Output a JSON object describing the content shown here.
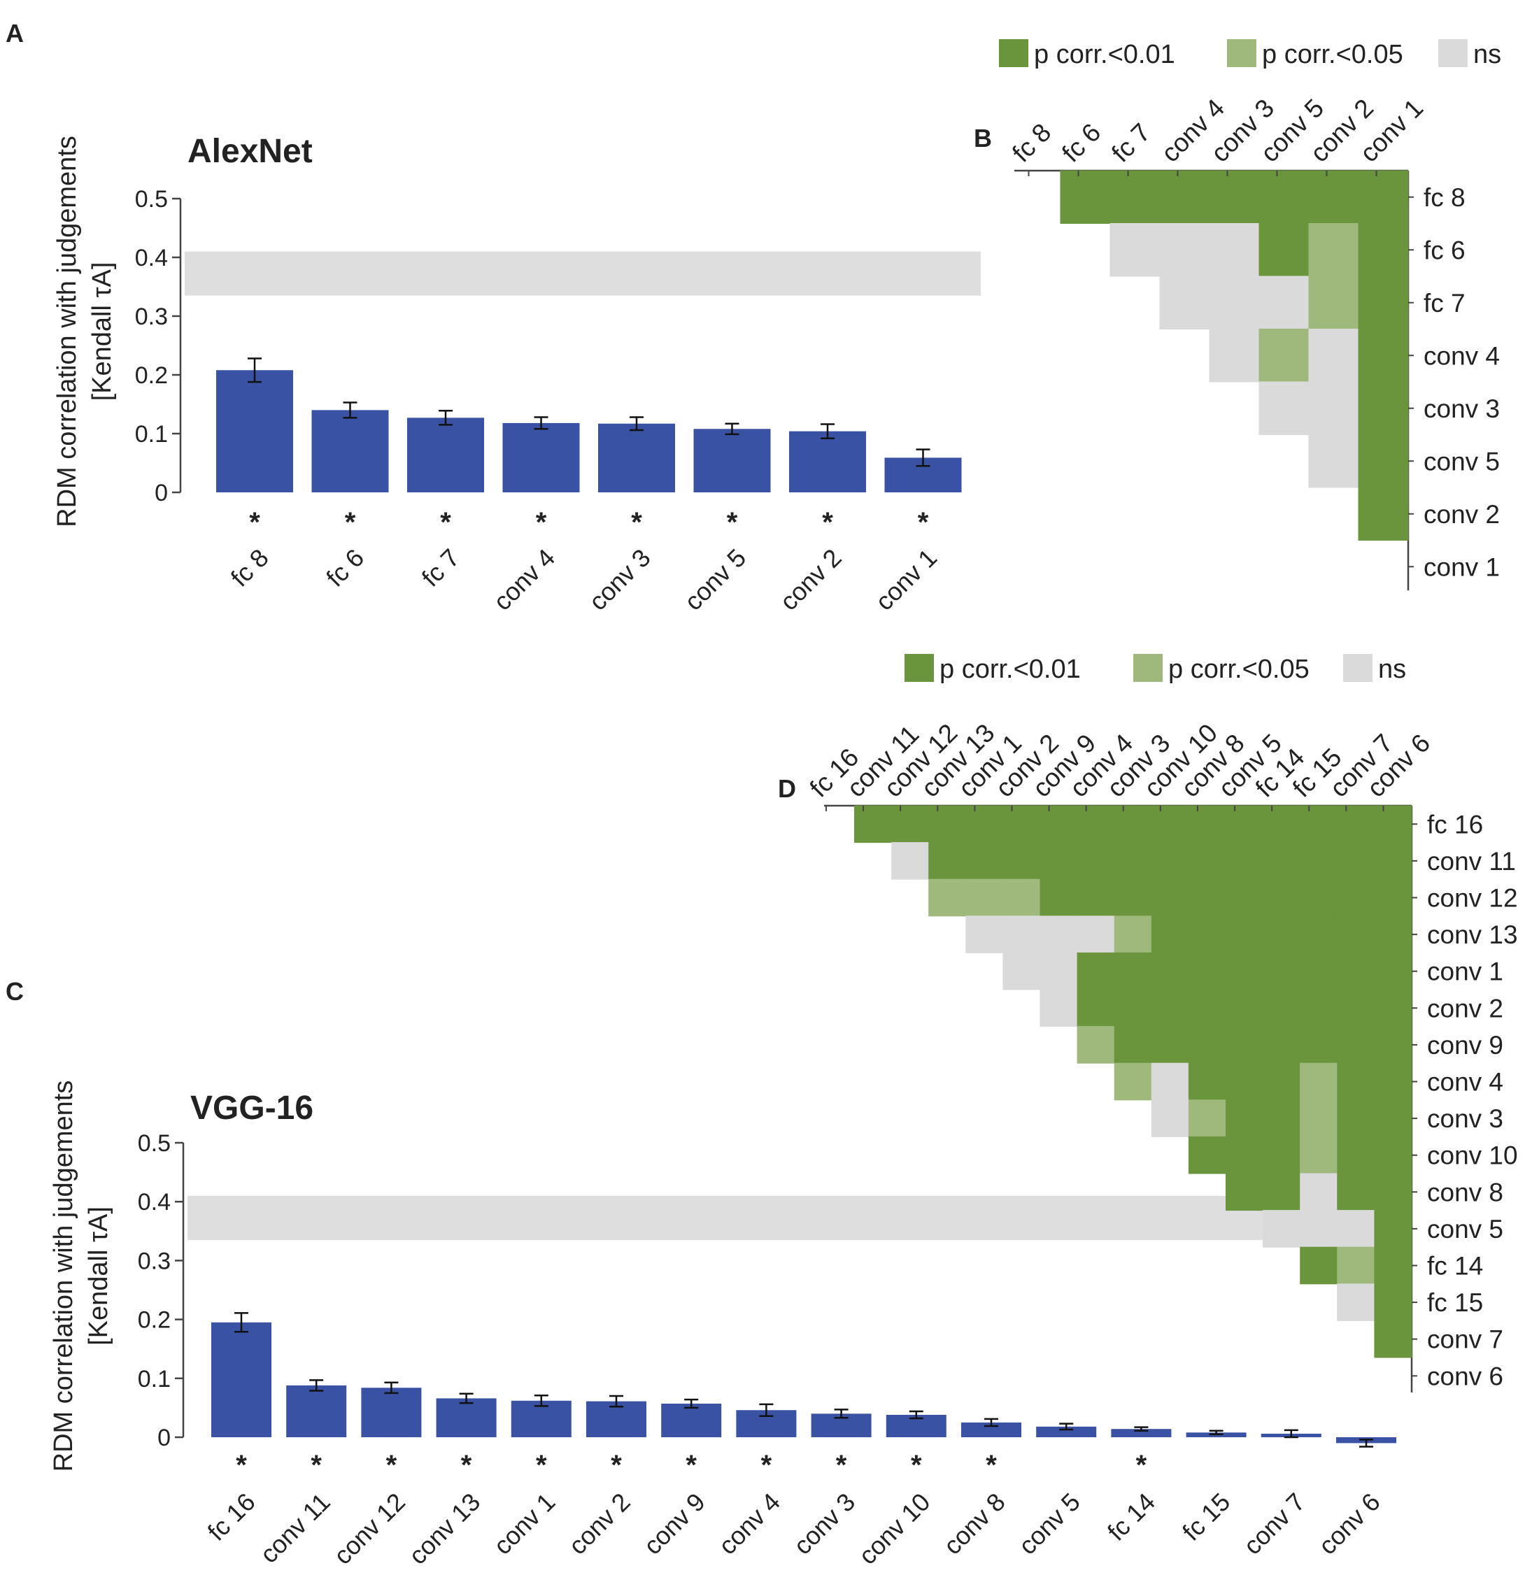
{
  "colors": {
    "bar": "#3a52a3",
    "p01": "#6a953d",
    "p05": "#9fb97c",
    "ns": "#dadada",
    "ceiling": "#dedede",
    "axis": "#444444"
  },
  "chart_data": [
    {
      "panel": "A",
      "type": "bar",
      "title": "AlexNet",
      "ylabel": "RDM correlation with judgements",
      "ylabel2": "[Kendall τA]",
      "ylim": [
        0,
        0.5
      ],
      "yticks": [
        "0",
        "0.1",
        "0.2",
        "0.3",
        "0.4",
        "0.5"
      ],
      "noise_ceiling": [
        0.335,
        0.41
      ],
      "categories": [
        "fc 8",
        "fc 6",
        "fc 7",
        "conv 4",
        "conv 3",
        "conv 5",
        "conv 2",
        "conv 1"
      ],
      "values": [
        0.208,
        0.14,
        0.127,
        0.118,
        0.117,
        0.108,
        0.104,
        0.059
      ],
      "errors": [
        0.02,
        0.013,
        0.012,
        0.01,
        0.011,
        0.009,
        0.012,
        0.014
      ],
      "significant": [
        "*",
        "*",
        "*",
        "*",
        "*",
        "*",
        "*",
        "*"
      ]
    },
    {
      "panel": "B",
      "type": "heatmap",
      "labels": [
        "fc 8",
        "fc 6",
        "fc 7",
        "conv 4",
        "conv 3",
        "conv 5",
        "conv 2",
        "conv 1"
      ],
      "legend": [
        "p corr.<0.01",
        "p corr.<0.05",
        "ns"
      ],
      "matrix": [
        [
          "p01",
          "p01",
          "p01",
          "p01",
          "p01",
          "p01",
          "p01"
        ],
        [
          "ns",
          "ns",
          "ns",
          "p01",
          "p05",
          "p01"
        ],
        [
          "ns",
          "ns",
          "ns",
          "p05",
          "p01"
        ],
        [
          "ns",
          "p05",
          "ns",
          "p01"
        ],
        [
          "ns",
          "ns",
          "p01"
        ],
        [
          "ns",
          "p01"
        ],
        [
          "p01"
        ]
      ]
    },
    {
      "panel": "C",
      "type": "bar",
      "title": "VGG-16",
      "ylabel": "RDM correlation with judgements",
      "ylabel2": "[Kendall τA]",
      "ylim": [
        0,
        0.5
      ],
      "yticks": [
        "0",
        "0.1",
        "0.2",
        "0.3",
        "0.4",
        "0.5"
      ],
      "noise_ceiling": [
        0.335,
        0.41
      ],
      "categories": [
        "fc 16",
        "conv 11",
        "conv 12",
        "conv 13",
        "conv 1",
        "conv 2",
        "conv 9",
        "conv 4",
        "conv 3",
        "conv 10",
        "conv 8",
        "conv 5",
        "fc 14",
        "fc 15",
        "conv 7",
        "conv 6"
      ],
      "values": [
        0.195,
        0.088,
        0.084,
        0.066,
        0.062,
        0.061,
        0.057,
        0.046,
        0.04,
        0.038,
        0.025,
        0.018,
        0.014,
        0.008,
        0.006,
        -0.01
      ],
      "errors": [
        0.016,
        0.009,
        0.009,
        0.008,
        0.009,
        0.009,
        0.007,
        0.01,
        0.007,
        0.006,
        0.006,
        0.005,
        0.003,
        0.003,
        0.006,
        0.006
      ],
      "significant": [
        "*",
        "*",
        "*",
        "*",
        "*",
        "*",
        "*",
        "*",
        "*",
        "*",
        "*",
        "",
        "*",
        "",
        "",
        ""
      ]
    },
    {
      "panel": "D",
      "type": "heatmap",
      "labels": [
        "fc 16",
        "conv 11",
        "conv 12",
        "conv 13",
        "conv 1",
        "conv 2",
        "conv 9",
        "conv 4",
        "conv 3",
        "conv 10",
        "conv 8",
        "conv 5",
        "fc 14",
        "fc 15",
        "conv 7",
        "conv 6"
      ],
      "legend": [
        "p corr.<0.01",
        "p corr.<0.05",
        "ns"
      ],
      "matrix": [
        [
          "p01",
          "p01",
          "p01",
          "p01",
          "p01",
          "p01",
          "p01",
          "p01",
          "p01",
          "p01",
          "p01",
          "p01",
          "p01",
          "p01",
          "p01"
        ],
        [
          "ns",
          "p01",
          "p01",
          "p01",
          "p01",
          "p01",
          "p01",
          "p01",
          "p01",
          "p01",
          "p01",
          "p01",
          "p01",
          "p01"
        ],
        [
          "p05",
          "p05",
          "p05",
          "p01",
          "p01",
          "p01",
          "p01",
          "p01",
          "p01",
          "p01",
          "p01",
          "p01",
          "p01"
        ],
        [
          "ns",
          "ns",
          "ns",
          "ns",
          "p05",
          "p01",
          "p01",
          "p01",
          "p01",
          "p01",
          "p01",
          "p01"
        ],
        [
          "ns",
          "ns",
          "p01",
          "p01",
          "p01",
          "p01",
          "p01",
          "p01",
          "p01",
          "p01",
          "p01"
        ],
        [
          "ns",
          "p01",
          "p01",
          "p01",
          "p01",
          "p01",
          "p01",
          "p01",
          "p01",
          "p01"
        ],
        [
          "p05",
          "p01",
          "p01",
          "p01",
          "p01",
          "p01",
          "p01",
          "p01",
          "p01"
        ],
        [
          "p05",
          "ns",
          "p01",
          "p01",
          "p01",
          "p05",
          "p01",
          "p01"
        ],
        [
          "ns",
          "p05",
          "p01",
          "p01",
          "p05",
          "p01",
          "p01"
        ],
        [
          "p01",
          "p01",
          "p01",
          "p05",
          "p01",
          "p01"
        ],
        [
          "p01",
          "p01",
          "ns",
          "p01",
          "p01"
        ],
        [
          "ns",
          "ns",
          "ns",
          "p01"
        ],
        [
          "p01",
          "p05",
          "p01"
        ],
        [
          "ns",
          "p01"
        ],
        [
          "p01"
        ]
      ]
    }
  ]
}
